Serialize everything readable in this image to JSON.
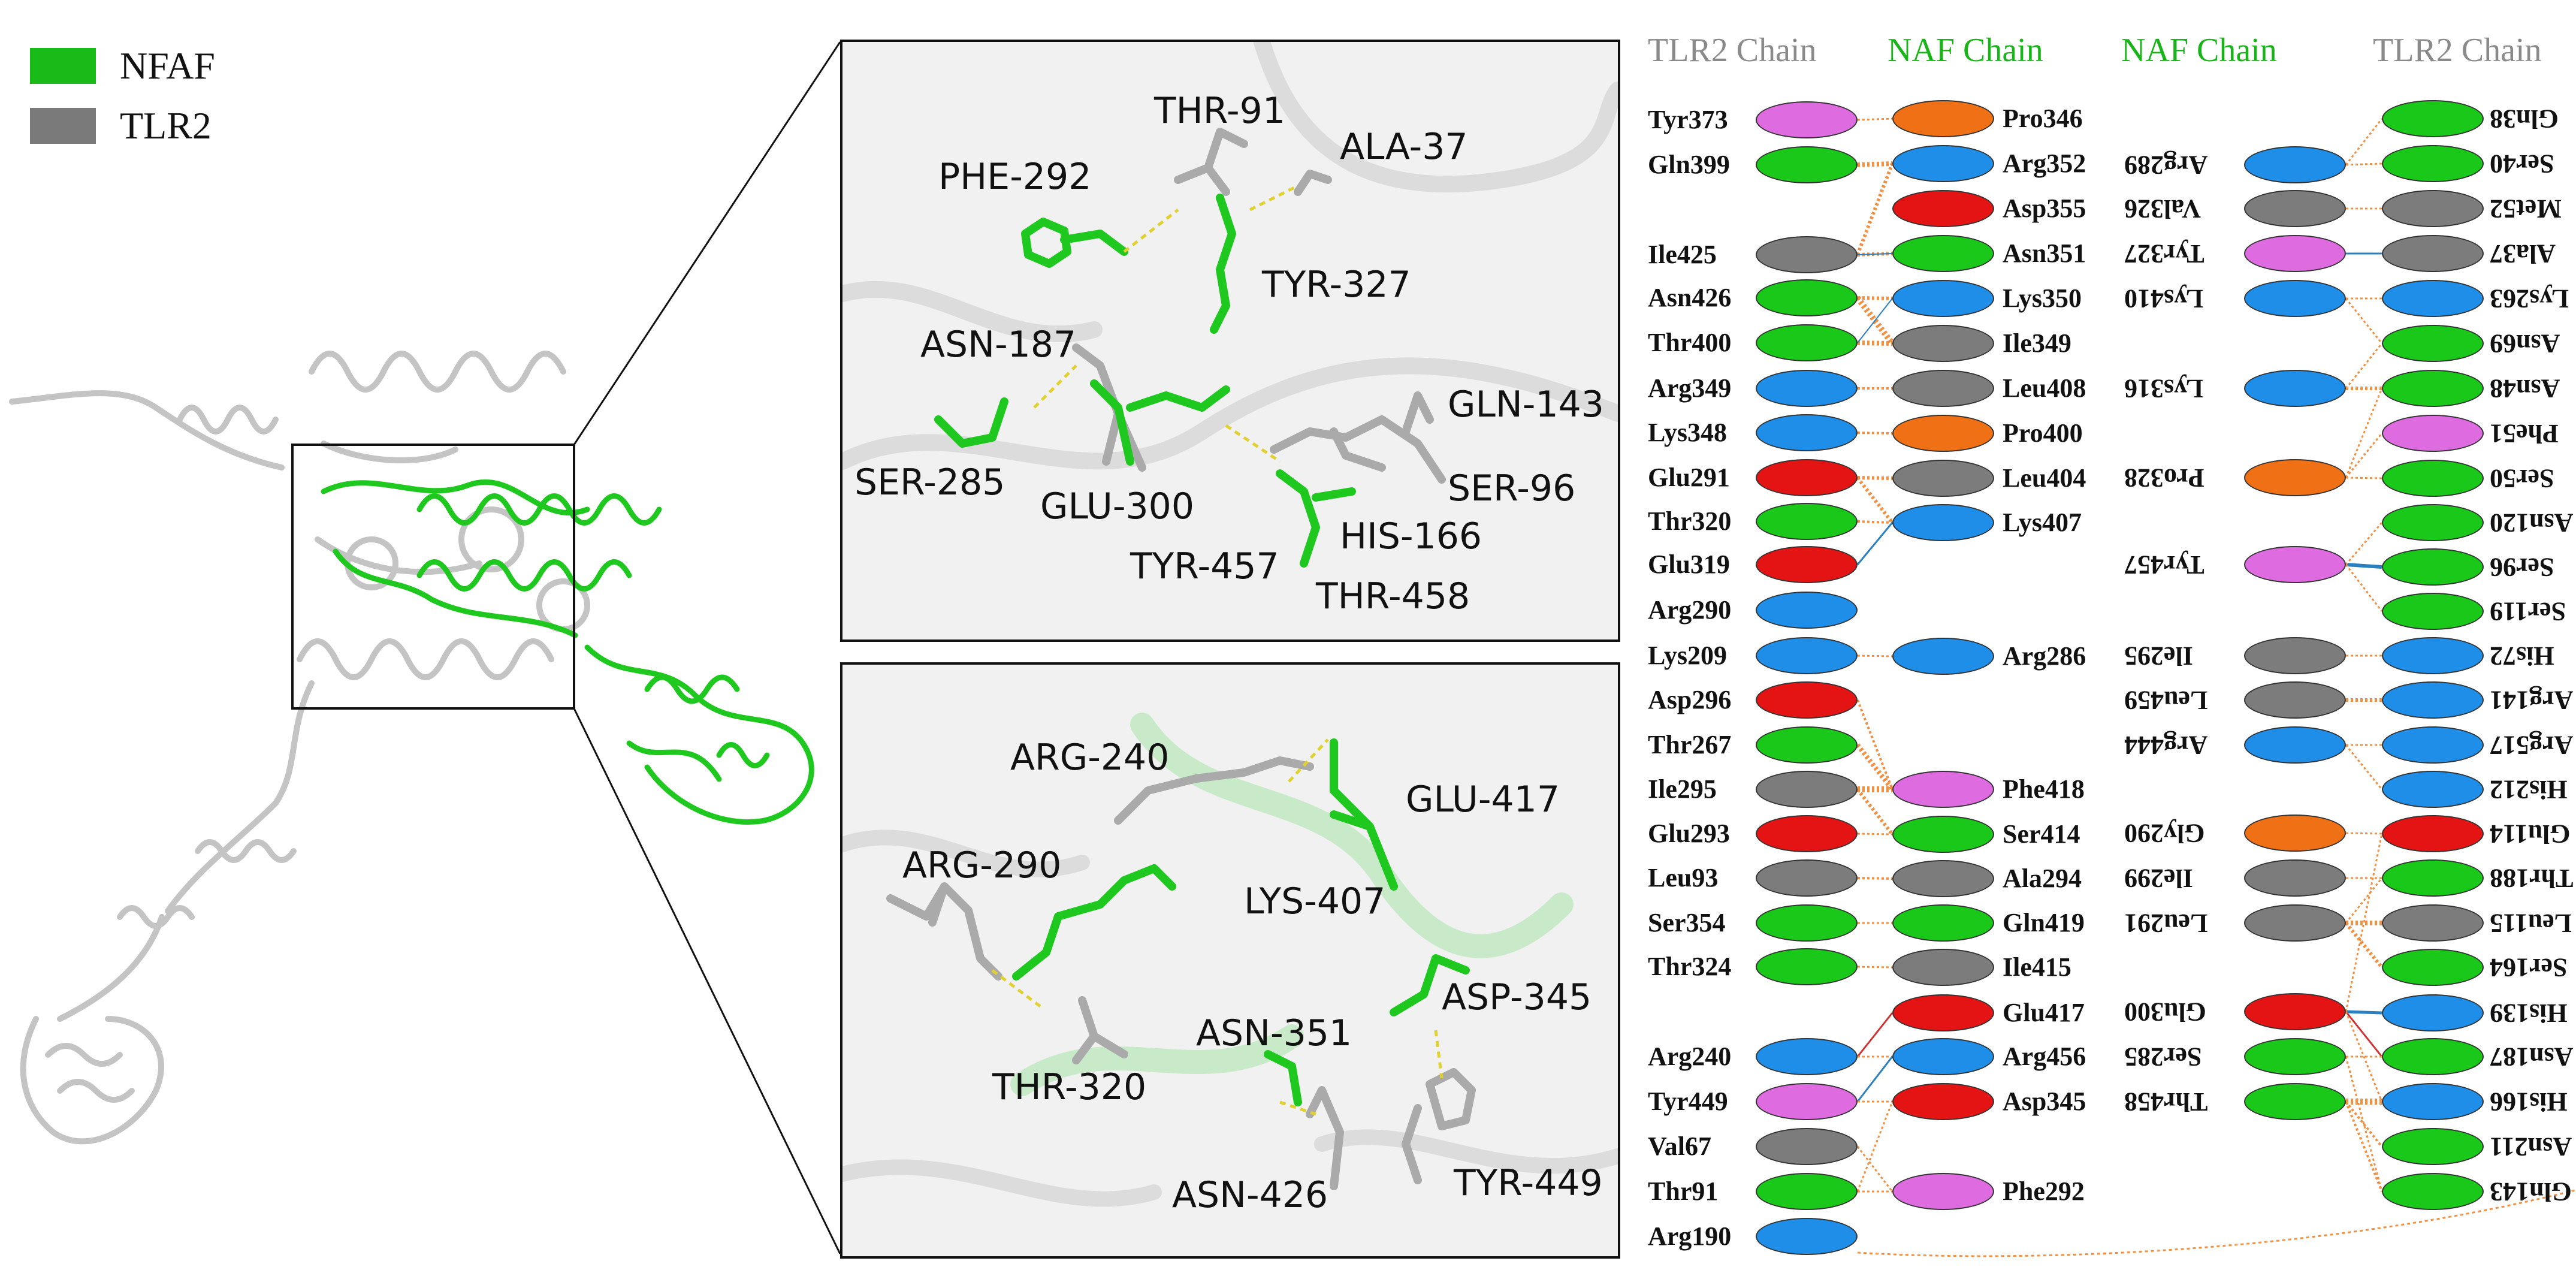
{
  "legend": [
    {
      "label": "NFAF",
      "color": "#19bb19"
    },
    {
      "label": "TLR2",
      "color": "#7a7a7a"
    }
  ],
  "colors": {
    "green": "#19c819",
    "gray": "#7c7c7c",
    "blue": "#1e8ee8",
    "red": "#e41414",
    "orange": "#f07016",
    "violet": "#de6be0",
    "dash": "#e0d030"
  },
  "panel_top": {
    "labels": [
      "THR-91",
      "ALA-37",
      "PHE-292",
      "TYR-327",
      "ASN-187",
      "GLN-143",
      "SER-285",
      "GLU-300",
      "SER-96",
      "HIS-166",
      "TYR-457",
      "THR-458"
    ]
  },
  "panel_bottom": {
    "labels": [
      "ARG-240",
      "GLU-417",
      "ARG-290",
      "LYS-407",
      "ASP-345",
      "ASN-351",
      "THR-320",
      "ASN-426",
      "TYR-449"
    ]
  },
  "table1": {
    "left_header": "TLR2 Chain",
    "right_header": "NAF Chain",
    "left": [
      {
        "name": "Tyr373",
        "color": "violet"
      },
      {
        "name": "Gln399",
        "color": "green"
      },
      {
        "name": "Ile425",
        "color": "gray"
      },
      {
        "name": "Asn426",
        "color": "green"
      },
      {
        "name": "Thr400",
        "color": "green"
      },
      {
        "name": "Arg349",
        "color": "blue"
      },
      {
        "name": "Lys348",
        "color": "blue"
      },
      {
        "name": "Glu291",
        "color": "red"
      },
      {
        "name": "Thr320",
        "color": "green"
      },
      {
        "name": "Glu319",
        "color": "red"
      },
      {
        "name": "Arg290",
        "color": "blue"
      },
      {
        "name": "Lys209",
        "color": "blue"
      },
      {
        "name": "Asp296",
        "color": "red"
      },
      {
        "name": "Thr267",
        "color": "green"
      },
      {
        "name": "Ile295",
        "color": "gray"
      },
      {
        "name": "Glu293",
        "color": "red"
      },
      {
        "name": "Leu93",
        "color": "gray"
      },
      {
        "name": "Ser354",
        "color": "green"
      },
      {
        "name": "Thr324",
        "color": "green"
      },
      {
        "name": "Arg240",
        "color": "blue"
      },
      {
        "name": "Tyr449",
        "color": "violet"
      },
      {
        "name": "Val67",
        "color": "gray"
      },
      {
        "name": "Thr91",
        "color": "green"
      },
      {
        "name": "Arg190",
        "color": "blue"
      }
    ],
    "right": [
      {
        "name": "Pro346",
        "color": "orange"
      },
      {
        "name": "Arg352",
        "color": "blue"
      },
      {
        "name": "Asp355",
        "color": "red"
      },
      {
        "name": "Asn351",
        "color": "green"
      },
      {
        "name": "Lys350",
        "color": "blue"
      },
      {
        "name": "Ile349",
        "color": "gray"
      },
      {
        "name": "Leu408",
        "color": "gray"
      },
      {
        "name": "Pro400",
        "color": "orange"
      },
      {
        "name": "Leu404",
        "color": "gray"
      },
      {
        "name": "Lys407",
        "color": "blue"
      },
      {
        "name": "Arg286",
        "color": "blue"
      },
      {
        "name": "Phe418",
        "color": "violet"
      },
      {
        "name": "Ser414",
        "color": "green"
      },
      {
        "name": "Ala294",
        "color": "gray"
      },
      {
        "name": "Gln419",
        "color": "green"
      },
      {
        "name": "Ile415",
        "color": "gray"
      },
      {
        "name": "Glu417",
        "color": "red"
      },
      {
        "name": "Arg456",
        "color": "blue"
      },
      {
        "name": "Asp345",
        "color": "red"
      },
      {
        "name": "Phe292",
        "color": "violet"
      }
    ]
  },
  "table2": {
    "left_header": "NAF Chain",
    "right_header": "TLR2 Chain",
    "left": [
      {
        "name": "Arg289",
        "color": "blue"
      },
      {
        "name": "Val326",
        "color": "gray"
      },
      {
        "name": "Tyr327",
        "color": "violet"
      },
      {
        "name": "Lys410",
        "color": "blue"
      },
      {
        "name": "Lys316",
        "color": "blue"
      },
      {
        "name": "Pro328",
        "color": "orange"
      },
      {
        "name": "Tyr457",
        "color": "violet"
      },
      {
        "name": "Ile295",
        "color": "gray"
      },
      {
        "name": "Leu459",
        "color": "gray"
      },
      {
        "name": "Arg444",
        "color": "blue"
      },
      {
        "name": "Gly290",
        "color": "orange"
      },
      {
        "name": "Ile299",
        "color": "gray"
      },
      {
        "name": "Leu291",
        "color": "gray"
      },
      {
        "name": "Glu300",
        "color": "red"
      },
      {
        "name": "Ser285",
        "color": "green"
      },
      {
        "name": "Thr458",
        "color": "green"
      }
    ],
    "right": [
      {
        "name": "Gln38",
        "color": "green"
      },
      {
        "name": "Ser40",
        "color": "green"
      },
      {
        "name": "Met52",
        "color": "gray"
      },
      {
        "name": "Ala37",
        "color": "gray"
      },
      {
        "name": "Lys263",
        "color": "blue"
      },
      {
        "name": "Asn69",
        "color": "green"
      },
      {
        "name": "Asn48",
        "color": "green"
      },
      {
        "name": "Phe51",
        "color": "violet"
      },
      {
        "name": "Ser50",
        "color": "green"
      },
      {
        "name": "Asn120",
        "color": "green"
      },
      {
        "name": "Ser96",
        "color": "green"
      },
      {
        "name": "Ser119",
        "color": "green"
      },
      {
        "name": "His72",
        "color": "blue"
      },
      {
        "name": "Arg141",
        "color": "blue"
      },
      {
        "name": "Arg517",
        "color": "blue"
      },
      {
        "name": "His212",
        "color": "blue"
      },
      {
        "name": "Glu114",
        "color": "red"
      },
      {
        "name": "Thr188",
        "color": "green"
      },
      {
        "name": "Leu115",
        "color": "gray"
      },
      {
        "name": "Ser164",
        "color": "green"
      },
      {
        "name": "His139",
        "color": "blue"
      },
      {
        "name": "Asn187",
        "color": "green"
      },
      {
        "name": "His166",
        "color": "blue"
      },
      {
        "name": "Asn211",
        "color": "green"
      },
      {
        "name": "Gln143",
        "color": "green"
      }
    ]
  }
}
